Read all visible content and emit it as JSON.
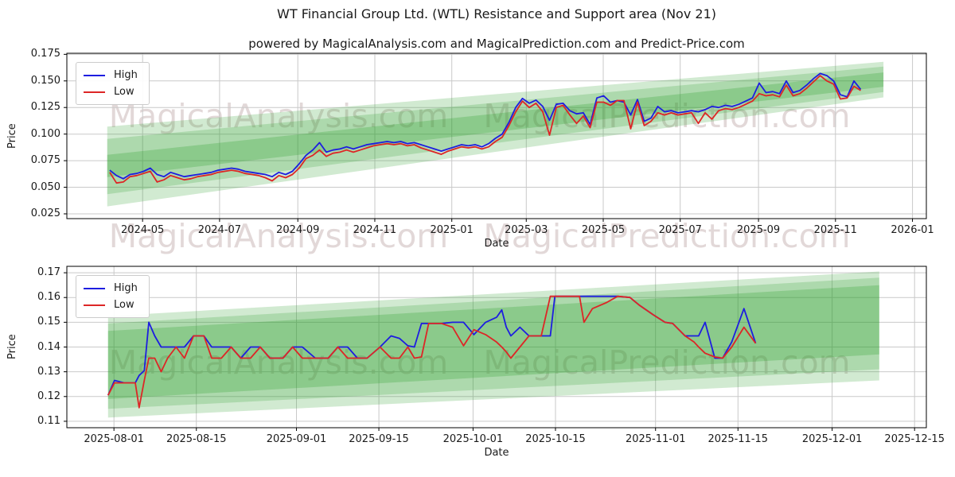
{
  "header": {
    "title": "WT Financial Group Ltd. (WTL) Resistance and Support area (Nov 21)",
    "subtitle": "powered by MagicalAnalysis.com and MagicalPrediction.com and Predict-Price.com"
  },
  "watermarks": {
    "analysis": "MagicalAnalysis.com",
    "prediction": "MagicalPrediction.com"
  },
  "colors": {
    "high": "#1d1de0",
    "low": "#dd2626",
    "band": "#2ca02c",
    "grid": "#c9c9c9",
    "frame": "#000000"
  },
  "chart_data": {
    "type": "line",
    "charts": [
      {
        "name": "long-term",
        "xlabel": "Date",
        "ylabel": "Price",
        "legend": {
          "high": "High",
          "low": "Low"
        },
        "x_domain": [
          "2024-03-02",
          "2026-01-12"
        ],
        "y_domain": [
          0.0205,
          0.176
        ],
        "x_ticks": [
          {
            "date": "2024-05-01",
            "label": "2024-05"
          },
          {
            "date": "2024-07-01",
            "label": "2024-07"
          },
          {
            "date": "2024-09-01",
            "label": "2024-09"
          },
          {
            "date": "2024-11-01",
            "label": "2024-11"
          },
          {
            "date": "2025-01-01",
            "label": "2025-01"
          },
          {
            "date": "2025-03-01",
            "label": "2025-03"
          },
          {
            "date": "2025-05-01",
            "label": "2025-05"
          },
          {
            "date": "2025-07-01",
            "label": "2025-07"
          },
          {
            "date": "2025-09-01",
            "label": "2025-09"
          },
          {
            "date": "2025-11-01",
            "label": "2025-11"
          },
          {
            "date": "2026-01-01",
            "label": "2026-01"
          }
        ],
        "y_ticks": [
          {
            "value": 0.175,
            "label": "0.175"
          },
          {
            "value": 0.15,
            "label": "0.150"
          },
          {
            "value": 0.125,
            "label": "0.125"
          },
          {
            "value": 0.1,
            "label": "0.100"
          },
          {
            "value": 0.075,
            "label": "0.075"
          },
          {
            "value": 0.05,
            "label": "0.050"
          },
          {
            "value": 0.025,
            "label": "0.025"
          }
        ],
        "bands": [
          {
            "start": "2024-04-03",
            "end": "2025-12-09",
            "top_start": 0.107,
            "top_end": 0.168,
            "bottom_start": 0.032,
            "bottom_end": 0.1345,
            "opacity": 0.22
          },
          {
            "start": "2024-04-03",
            "end": "2025-12-09",
            "top_start": 0.0955,
            "top_end": 0.1635,
            "bottom_start": 0.0435,
            "bottom_end": 0.1395,
            "opacity": 0.22
          },
          {
            "start": "2024-04-03",
            "end": "2025-12-09",
            "top_start": 0.0805,
            "top_end": 0.158,
            "bottom_start": 0.0595,
            "bottom_end": 0.1445,
            "opacity": 0.26
          }
        ],
        "series": {
          "start": "2024-04-05",
          "end": "2025-11-21",
          "high": [
            0.066,
            0.061,
            0.058,
            0.062,
            0.063,
            0.065,
            0.068,
            0.062,
            0.06,
            0.064,
            0.062,
            0.06,
            0.061,
            0.062,
            0.063,
            0.064,
            0.066,
            0.067,
            0.068,
            0.067,
            0.065,
            0.064,
            0.063,
            0.062,
            0.06,
            0.064,
            0.062,
            0.065,
            0.072,
            0.08,
            0.085,
            0.092,
            0.083,
            0.085,
            0.086,
            0.088,
            0.086,
            0.088,
            0.09,
            0.091,
            0.092,
            0.093,
            0.092,
            0.093,
            0.091,
            0.092,
            0.09,
            0.088,
            0.086,
            0.084,
            0.086,
            0.088,
            0.09,
            0.089,
            0.09,
            0.088,
            0.091,
            0.096,
            0.1,
            0.111,
            0.125,
            0.1335,
            0.129,
            0.132,
            0.126,
            0.113,
            0.128,
            0.129,
            0.122,
            0.119,
            0.12,
            0.109,
            0.134,
            0.136,
            0.13,
            0.1315,
            0.13,
            0.118,
            0.1325,
            0.112,
            0.115,
            0.126,
            0.121,
            0.122,
            0.12,
            0.121,
            0.122,
            0.121,
            0.123,
            0.126,
            0.125,
            0.127,
            0.126,
            0.128,
            0.131,
            0.134,
            0.148,
            0.139,
            0.14,
            0.138,
            0.15,
            0.139,
            0.141,
            0.146,
            0.152,
            0.157,
            0.155,
            0.15,
            0.137,
            0.135,
            0.15,
            0.142
          ],
          "low": [
            0.064,
            0.054,
            0.055,
            0.06,
            0.061,
            0.063,
            0.065,
            0.055,
            0.057,
            0.061,
            0.059,
            0.057,
            0.058,
            0.06,
            0.061,
            0.062,
            0.064,
            0.065,
            0.066,
            0.065,
            0.063,
            0.062,
            0.061,
            0.059,
            0.056,
            0.061,
            0.059,
            0.062,
            0.068,
            0.077,
            0.08,
            0.085,
            0.079,
            0.082,
            0.083,
            0.085,
            0.083,
            0.085,
            0.087,
            0.089,
            0.09,
            0.091,
            0.09,
            0.091,
            0.089,
            0.09,
            0.087,
            0.085,
            0.083,
            0.081,
            0.084,
            0.086,
            0.088,
            0.087,
            0.088,
            0.086,
            0.088,
            0.093,
            0.097,
            0.108,
            0.121,
            0.131,
            0.125,
            0.129,
            0.121,
            0.099,
            0.125,
            0.127,
            0.118,
            0.11,
            0.117,
            0.106,
            0.13,
            0.13,
            0.127,
            0.1315,
            0.1315,
            0.105,
            0.13,
            0.108,
            0.112,
            0.12,
            0.118,
            0.12,
            0.118,
            0.119,
            0.12,
            0.11,
            0.12,
            0.114,
            0.122,
            0.124,
            0.123,
            0.125,
            0.128,
            0.131,
            0.138,
            0.136,
            0.137,
            0.135,
            0.146,
            0.136,
            0.138,
            0.143,
            0.149,
            0.155,
            0.15,
            0.147,
            0.133,
            0.134,
            0.145,
            0.141
          ]
        }
      },
      {
        "name": "recent",
        "xlabel": "Date",
        "ylabel": "Price",
        "legend": {
          "high": "High",
          "low": "Low"
        },
        "x_domain": [
          "2025-07-24",
          "2025-12-17"
        ],
        "y_domain": [
          0.1074,
          0.1726
        ],
        "x_ticks": [
          {
            "date": "2025-08-01",
            "label": "2025-08-01"
          },
          {
            "date": "2025-08-15",
            "label": "2025-08-15"
          },
          {
            "date": "2025-09-01",
            "label": "2025-09-01"
          },
          {
            "date": "2025-09-15",
            "label": "2025-09-15"
          },
          {
            "date": "2025-10-01",
            "label": "2025-10-01"
          },
          {
            "date": "2025-10-15",
            "label": "2025-10-15"
          },
          {
            "date": "2025-11-01",
            "label": "2025-11-01"
          },
          {
            "date": "2025-11-15",
            "label": "2025-11-15"
          },
          {
            "date": "2025-12-01",
            "label": "2025-12-01"
          },
          {
            "date": "2025-12-15",
            "label": "2025-12-15"
          }
        ],
        "y_ticks": [
          {
            "value": 0.17,
            "label": "0.17"
          },
          {
            "value": 0.16,
            "label": "0.16"
          },
          {
            "value": 0.15,
            "label": "0.15"
          },
          {
            "value": 0.14,
            "label": "0.14"
          },
          {
            "value": 0.13,
            "label": "0.13"
          },
          {
            "value": 0.12,
            "label": "0.12"
          },
          {
            "value": 0.11,
            "label": "0.11"
          }
        ],
        "bands": [
          {
            "start": "2025-07-31",
            "end": "2025-12-09",
            "top_start": 0.1525,
            "top_end": 0.1705,
            "bottom_start": 0.1115,
            "bottom_end": 0.1265,
            "opacity": 0.22
          },
          {
            "start": "2025-07-31",
            "end": "2025-12-09",
            "top_start": 0.1495,
            "top_end": 0.168,
            "bottom_start": 0.115,
            "bottom_end": 0.131,
            "opacity": 0.22
          },
          {
            "start": "2025-07-31",
            "end": "2025-12-09",
            "top_start": 0.1465,
            "top_end": 0.165,
            "bottom_start": 0.119,
            "bottom_end": 0.137,
            "opacity": 0.26
          }
        ],
        "series": {
          "start": "2025-07-31",
          "end": "2025-11-18",
          "t": [
            0.0,
            0.01,
            0.025,
            0.042,
            0.048,
            0.056,
            0.063,
            0.072,
            0.082,
            0.092,
            0.105,
            0.118,
            0.132,
            0.148,
            0.16,
            0.175,
            0.19,
            0.205,
            0.22,
            0.235,
            0.25,
            0.27,
            0.285,
            0.3,
            0.32,
            0.34,
            0.355,
            0.37,
            0.385,
            0.4,
            0.42,
            0.437,
            0.45,
            0.463,
            0.473,
            0.484,
            0.495,
            0.515,
            0.532,
            0.549,
            0.565,
            0.583,
            0.6,
            0.608,
            0.615,
            0.622,
            0.636,
            0.65,
            0.669,
            0.683,
            0.69,
            0.71,
            0.728,
            0.735,
            0.748,
            0.77,
            0.787,
            0.806,
            0.82,
            0.842,
            0.86,
            0.872,
            0.891,
            0.905,
            0.912,
            0.922,
            0.937,
            0.949,
            0.963,
            0.982,
            1.0
          ],
          "high": [
            0.1205,
            0.1265,
            0.1255,
            0.1255,
            0.1285,
            0.1305,
            0.15,
            0.1445,
            0.14,
            0.14,
            0.14,
            0.14,
            0.1445,
            0.1445,
            0.14,
            0.14,
            0.14,
            0.1355,
            0.14,
            0.14,
            0.1355,
            0.1355,
            0.14,
            0.14,
            0.1355,
            0.1355,
            0.14,
            0.14,
            0.1355,
            0.1355,
            0.14,
            0.1445,
            0.1435,
            0.1405,
            0.14,
            0.1495,
            0.1495,
            0.1495,
            0.15,
            0.15,
            0.145,
            0.15,
            0.152,
            0.155,
            0.148,
            0.1445,
            0.148,
            0.1445,
            0.1445,
            0.1445,
            0.1605,
            0.1605,
            0.1605,
            0.1605,
            0.1605,
            0.1605,
            0.1605,
            0.16,
            0.157,
            0.153,
            0.15,
            0.1495,
            0.1445,
            0.1445,
            0.1445,
            0.15,
            0.1355,
            0.1355,
            0.142,
            0.1555,
            0.1415
          ],
          "low": [
            0.1205,
            0.1255,
            0.1255,
            0.1255,
            0.1155,
            0.1265,
            0.1355,
            0.1355,
            0.13,
            0.1355,
            0.14,
            0.1355,
            0.1445,
            0.1445,
            0.1355,
            0.1355,
            0.14,
            0.1355,
            0.1355,
            0.14,
            0.1355,
            0.1355,
            0.14,
            0.1355,
            0.1355,
            0.1355,
            0.14,
            0.1355,
            0.1355,
            0.1355,
            0.14,
            0.1355,
            0.1355,
            0.14,
            0.1355,
            0.136,
            0.1495,
            0.1495,
            0.148,
            0.1405,
            0.147,
            0.145,
            0.142,
            0.14,
            0.138,
            0.1355,
            0.14,
            0.1445,
            0.1445,
            0.1605,
            0.1605,
            0.1605,
            0.1605,
            0.15,
            0.1555,
            0.158,
            0.1605,
            0.16,
            0.157,
            0.153,
            0.15,
            0.1495,
            0.1445,
            0.142,
            0.14,
            0.1375,
            0.136,
            0.1355,
            0.14,
            0.148,
            0.1415
          ]
        }
      }
    ]
  }
}
